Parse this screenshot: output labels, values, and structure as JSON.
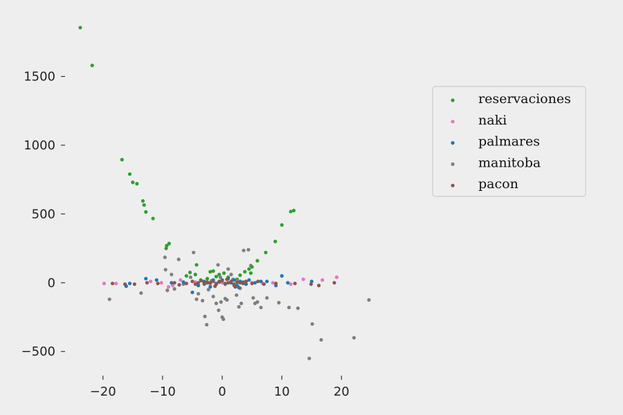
{
  "chart_data": {
    "type": "scatter",
    "title": "",
    "xlabel": "",
    "ylabel": "",
    "xlim": [
      -26,
      26
    ],
    "ylim": [
      -700,
      1920
    ],
    "xticks": [
      -20,
      -10,
      0,
      10,
      20
    ],
    "xtick_labels": [
      "−20",
      "−10",
      "0",
      "10",
      "20"
    ],
    "yticks": [
      -500,
      0,
      500,
      1000,
      1500
    ],
    "ytick_labels": [
      "−500",
      "0",
      "500",
      "1000",
      "1500"
    ],
    "grid": false,
    "legend_position": "right",
    "background": "#eeeeee",
    "series": [
      {
        "name": "reservaciones",
        "color": "#2ca02c",
        "points": [
          [
            -23.8,
            1855
          ],
          [
            -21.8,
            1580
          ],
          [
            -16.8,
            895
          ],
          [
            -15.5,
            790
          ],
          [
            -15.0,
            730
          ],
          [
            -14.3,
            720
          ],
          [
            -13.3,
            595
          ],
          [
            -13.1,
            565
          ],
          [
            -12.8,
            515
          ],
          [
            -11.6,
            467
          ],
          [
            -8.9,
            285
          ],
          [
            -9.3,
            270
          ],
          [
            -9.4,
            250
          ],
          [
            -6.0,
            50
          ],
          [
            -5.4,
            75
          ],
          [
            -4.5,
            60
          ],
          [
            -4.3,
            130
          ],
          [
            -3.6,
            20
          ],
          [
            -3.0,
            0
          ],
          [
            -2.0,
            80
          ],
          [
            -1.5,
            85
          ],
          [
            -1.0,
            45
          ],
          [
            -0.5,
            60
          ],
          [
            0.3,
            70
          ],
          [
            1.0,
            40
          ],
          [
            2.5,
            25
          ],
          [
            3.0,
            55
          ],
          [
            3.8,
            80
          ],
          [
            4.5,
            100
          ],
          [
            5.0,
            115
          ],
          [
            5.9,
            160
          ],
          [
            7.3,
            220
          ],
          [
            8.9,
            300
          ],
          [
            10.0,
            420
          ],
          [
            11.5,
            518
          ],
          [
            12.0,
            525
          ],
          [
            -3.0,
            -10
          ],
          [
            2.0,
            -15
          ],
          [
            4.8,
            70
          ],
          [
            -2.5,
            30
          ]
        ]
      },
      {
        "name": "naki",
        "color": "#e377c2",
        "points": [
          [
            -19.8,
            -5
          ],
          [
            -17.8,
            -5
          ],
          [
            -10.2,
            0
          ],
          [
            -9.0,
            -30
          ],
          [
            -8.3,
            -20
          ],
          [
            -7.0,
            20
          ],
          [
            -4.5,
            5
          ],
          [
            -2.0,
            -10
          ],
          [
            0.0,
            0
          ],
          [
            2.5,
            10
          ],
          [
            5.0,
            0
          ],
          [
            8.5,
            0
          ],
          [
            11.5,
            -10
          ],
          [
            13.6,
            25
          ],
          [
            16.8,
            20
          ],
          [
            19.2,
            40
          ],
          [
            -12.0,
            10
          ],
          [
            6.8,
            -5
          ]
        ]
      },
      {
        "name": "palmares",
        "color": "#1f77b4",
        "points": [
          [
            -16.1,
            -25
          ],
          [
            -15.5,
            -5
          ],
          [
            -12.8,
            30
          ],
          [
            -11.0,
            20
          ],
          [
            -8.5,
            0
          ],
          [
            -5.0,
            -70
          ],
          [
            -4.0,
            -20
          ],
          [
            -3.0,
            10
          ],
          [
            -2.5,
            0
          ],
          [
            -1.5,
            20
          ],
          [
            -1.0,
            -5
          ],
          [
            -0.5,
            10
          ],
          [
            0.0,
            20
          ],
          [
            0.5,
            -10
          ],
          [
            1.0,
            30
          ],
          [
            1.5,
            0
          ],
          [
            2.0,
            20
          ],
          [
            2.5,
            -20
          ],
          [
            3.0,
            10
          ],
          [
            3.5,
            5
          ],
          [
            4.0,
            -10
          ],
          [
            4.5,
            20
          ],
          [
            5.5,
            0
          ],
          [
            6.5,
            10
          ],
          [
            7.5,
            10
          ],
          [
            9.0,
            -20
          ],
          [
            10.0,
            50
          ],
          [
            11.0,
            0
          ],
          [
            15.0,
            10
          ],
          [
            -6.5,
            5
          ],
          [
            -2.0,
            -30
          ],
          [
            2.8,
            -35
          ]
        ]
      },
      {
        "name": "manitoba",
        "color": "#7f7f7f",
        "points": [
          [
            -18.9,
            -120
          ],
          [
            -13.6,
            -75
          ],
          [
            -9.6,
            185
          ],
          [
            -9.5,
            95
          ],
          [
            -9.2,
            -55
          ],
          [
            -8.5,
            60
          ],
          [
            -8.0,
            -45
          ],
          [
            -7.3,
            170
          ],
          [
            -6.5,
            -10
          ],
          [
            -5.3,
            40
          ],
          [
            -4.8,
            220
          ],
          [
            -4.3,
            -120
          ],
          [
            -4.0,
            -80
          ],
          [
            -3.3,
            -130
          ],
          [
            -2.9,
            -245
          ],
          [
            -2.6,
            -305
          ],
          [
            -2.3,
            -50
          ],
          [
            -1.5,
            -100
          ],
          [
            -1.0,
            -150
          ],
          [
            -0.7,
            130
          ],
          [
            -0.6,
            -200
          ],
          [
            -0.2,
            -140
          ],
          [
            0.0,
            -250
          ],
          [
            0.2,
            -265
          ],
          [
            0.5,
            -115
          ],
          [
            0.8,
            -125
          ],
          [
            1.0,
            100
          ],
          [
            1.5,
            60
          ],
          [
            2.0,
            -20
          ],
          [
            2.4,
            -90
          ],
          [
            2.8,
            -175
          ],
          [
            3.2,
            -150
          ],
          [
            3.6,
            235
          ],
          [
            4.4,
            240
          ],
          [
            4.8,
            125
          ],
          [
            5.2,
            -110
          ],
          [
            5.5,
            -150
          ],
          [
            5.9,
            -140
          ],
          [
            6.5,
            -180
          ],
          [
            7.5,
            -110
          ],
          [
            9.5,
            -145
          ],
          [
            11.2,
            -180
          ],
          [
            12.7,
            -185
          ],
          [
            14.6,
            -550
          ],
          [
            15.1,
            -300
          ],
          [
            16.6,
            -415
          ],
          [
            22.1,
            -400
          ],
          [
            24.6,
            -125
          ],
          [
            -0.3,
            40
          ],
          [
            1.8,
            25
          ],
          [
            3.0,
            -40
          ],
          [
            -1.8,
            15
          ]
        ]
      },
      {
        "name": "pacon",
        "color": "#8c564b",
        "points": [
          [
            -18.4,
            -5
          ],
          [
            -16.3,
            -10
          ],
          [
            -14.7,
            -10
          ],
          [
            -12.6,
            0
          ],
          [
            -10.8,
            -5
          ],
          [
            -8.0,
            0
          ],
          [
            -7.2,
            -15
          ],
          [
            -6.0,
            -5
          ],
          [
            -5.0,
            10
          ],
          [
            -4.5,
            -10
          ],
          [
            -4.0,
            0
          ],
          [
            -3.5,
            15
          ],
          [
            -3.0,
            -5
          ],
          [
            -2.5,
            5
          ],
          [
            -2.0,
            0
          ],
          [
            -1.5,
            10
          ],
          [
            -1.0,
            -10
          ],
          [
            -0.5,
            5
          ],
          [
            0.0,
            15
          ],
          [
            0.5,
            -5
          ],
          [
            1.0,
            0
          ],
          [
            1.5,
            10
          ],
          [
            2.0,
            -10
          ],
          [
            2.5,
            5
          ],
          [
            3.0,
            0
          ],
          [
            3.5,
            -5
          ],
          [
            4.0,
            10
          ],
          [
            5.0,
            -5
          ],
          [
            6.0,
            10
          ],
          [
            7.0,
            -10
          ],
          [
            9.0,
            -5
          ],
          [
            12.2,
            -5
          ],
          [
            14.9,
            -10
          ],
          [
            16.2,
            -20
          ],
          [
            18.8,
            0
          ],
          [
            -1.2,
            -25
          ],
          [
            0.8,
            25
          ],
          [
            2.2,
            -30
          ]
        ]
      }
    ]
  }
}
